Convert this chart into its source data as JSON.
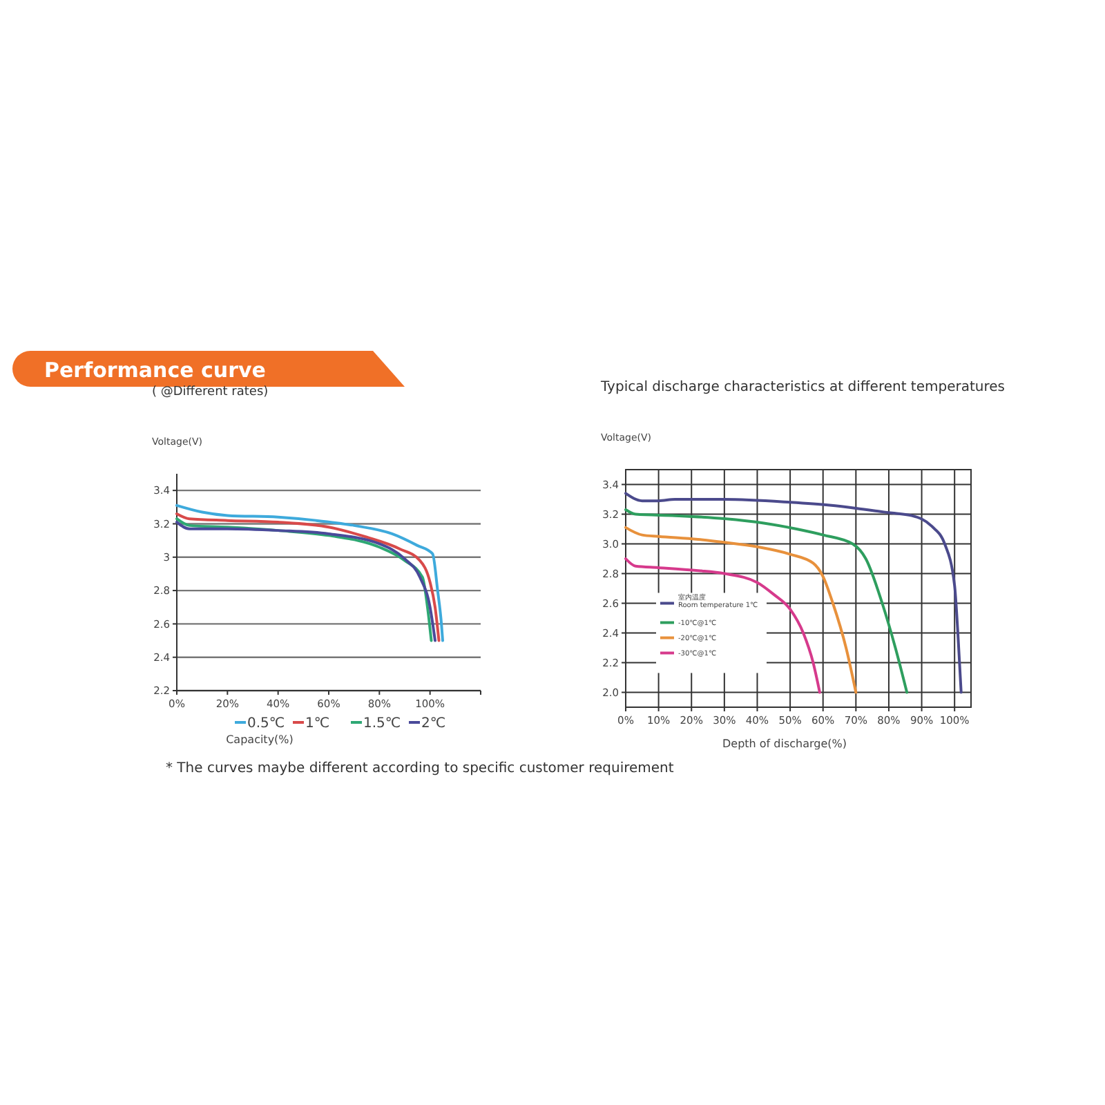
{
  "chart_data": [
    {
      "type": "other",
      "title": "Performance curve",
      "annotations": [
        "* The curves maybe different according to specific customer requirement"
      ]
    },
    {
      "type": "line",
      "title": "( @Different rates)",
      "ylabel": "Voltage(V)",
      "xlabel": "Capacity(%)",
      "xlim": [
        0,
        120
      ],
      "ylim": [
        2.2,
        3.5
      ],
      "xticks": [
        {
          "value": 0,
          "label": "0%"
        },
        {
          "value": 20,
          "label": "20%"
        },
        {
          "value": 40,
          "label": "40%"
        },
        {
          "value": 60,
          "label": "60%"
        },
        {
          "value": 80,
          "label": "80%"
        },
        {
          "value": 100,
          "label": "100%"
        },
        {
          "value": 120,
          "label": null
        }
      ],
      "yticks": [
        2.2,
        2.4,
        2.6,
        2.8,
        3,
        3.2,
        3.4
      ],
      "grid": "y",
      "legend": "bottom",
      "marker": "none",
      "line_style": "solid",
      "series": [
        {
          "name": "0.5℃",
          "color": "#3eaadc",
          "x": [
            0,
            10,
            20,
            40,
            55,
            70,
            85,
            95,
            101,
            103,
            104.5,
            105
          ],
          "values": [
            3.31,
            3.27,
            3.25,
            3.24,
            3.22,
            3.19,
            3.14,
            3.07,
            3.02,
            2.8,
            2.6,
            2.5
          ]
        },
        {
          "name": "1℃",
          "color": "#d84a4a",
          "x": [
            0,
            5,
            20,
            40,
            60,
            75,
            88,
            96,
            100,
            102,
            103.5
          ],
          "values": [
            3.26,
            3.23,
            3.22,
            3.21,
            3.18,
            3.12,
            3.05,
            2.98,
            2.85,
            2.7,
            2.5
          ]
        },
        {
          "name": "1.5℃",
          "color": "#2ea874",
          "x": [
            0,
            5,
            20,
            40,
            60,
            80,
            90,
            97,
            99,
            100.5
          ],
          "values": [
            3.23,
            3.19,
            3.18,
            3.16,
            3.13,
            3.06,
            2.98,
            2.88,
            2.7,
            2.5
          ]
        },
        {
          "name": "2℃",
          "color": "#4a4a9a",
          "x": [
            0,
            5,
            20,
            40,
            60,
            80,
            90,
            96,
            100,
            102
          ],
          "values": [
            3.21,
            3.17,
            3.17,
            3.16,
            3.14,
            3.08,
            2.99,
            2.88,
            2.7,
            2.5
          ]
        }
      ]
    },
    {
      "type": "line",
      "title": "Typical discharge characteristics at different temperatures",
      "ylabel": "Voltage(V)",
      "xlabel": "Depth of discharge(%)",
      "xlim": [
        0,
        105
      ],
      "ylim": [
        1.9,
        3.5
      ],
      "xticks": [
        {
          "value": 0,
          "label": "0%"
        },
        {
          "value": 10,
          "label": "10%"
        },
        {
          "value": 20,
          "label": "20%"
        },
        {
          "value": 30,
          "label": "30%"
        },
        {
          "value": 40,
          "label": "40%"
        },
        {
          "value": 50,
          "label": "50%"
        },
        {
          "value": 60,
          "label": "60%"
        },
        {
          "value": 70,
          "label": "70%"
        },
        {
          "value": 80,
          "label": "80%"
        },
        {
          "value": 90,
          "label": "90%"
        },
        {
          "value": 100,
          "label": "100%"
        }
      ],
      "yticks": [
        {
          "value": 2,
          "label": "2.0"
        },
        {
          "value": 2.2,
          "label": "2.2"
        },
        {
          "value": 2.4,
          "label": "2.4"
        },
        {
          "value": 2.6,
          "label": "2.6"
        },
        {
          "value": 2.8,
          "label": "2.8"
        },
        {
          "value": 3,
          "label": "3.0"
        },
        {
          "value": 3.2,
          "label": "3.2"
        },
        {
          "value": 3.4,
          "label": "3.4"
        }
      ],
      "grid": true,
      "legend": "left",
      "marker": "none",
      "line_style": "solid",
      "series": [
        {
          "name": "室内温度 Room temperature 1℃",
          "color": "#4b4a8c",
          "x": [
            0,
            5,
            10,
            15,
            30,
            50,
            62,
            70,
            80,
            87,
            93,
            97,
            100,
            101,
            102
          ],
          "values": [
            3.34,
            3.29,
            3.29,
            3.3,
            3.3,
            3.28,
            3.26,
            3.24,
            3.21,
            3.19,
            3.12,
            3,
            2.72,
            2.4,
            2
          ]
        },
        {
          "name": "-10℃@1℃",
          "color": "#2e9e5e",
          "x": [
            0,
            3,
            15,
            30,
            42,
            52,
            60,
            69,
            73,
            78,
            82,
            85.5
          ],
          "values": [
            3.23,
            3.2,
            3.19,
            3.17,
            3.14,
            3.1,
            3.06,
            3,
            2.9,
            2.6,
            2.3,
            2
          ]
        },
        {
          "name": "-20℃@1℃",
          "color": "#e8913c",
          "x": [
            0,
            5,
            10,
            22,
            30,
            40,
            50,
            57,
            60,
            63,
            67,
            70
          ],
          "values": [
            3.11,
            3.06,
            3.05,
            3.03,
            3.01,
            2.98,
            2.93,
            2.87,
            2.78,
            2.6,
            2.3,
            2
          ]
        },
        {
          "name": "-30℃@1℃",
          "color": "#d63a8c",
          "x": [
            0,
            3,
            10,
            22,
            30,
            40,
            45,
            50,
            54,
            57,
            59
          ],
          "values": [
            2.9,
            2.85,
            2.84,
            2.82,
            2.8,
            2.74,
            2.66,
            2.56,
            2.4,
            2.2,
            2
          ]
        }
      ]
    }
  ]
}
